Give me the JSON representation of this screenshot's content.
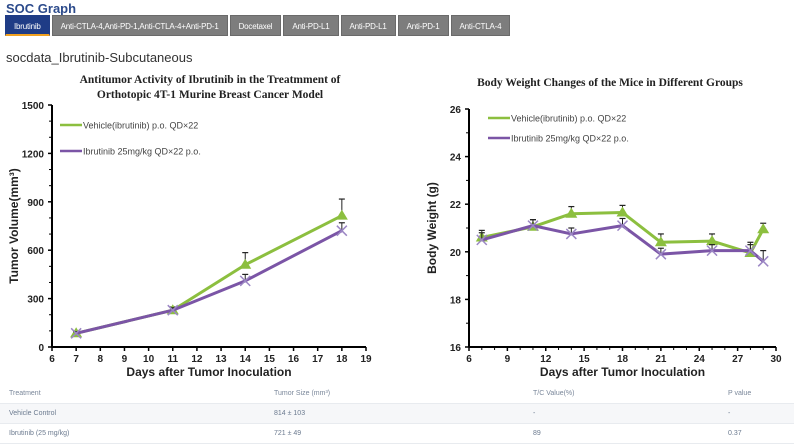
{
  "header": {
    "title": "SOC Graph",
    "tabs": [
      {
        "label": "Ibrutinib",
        "active": true
      },
      {
        "label": "Anti-CTLA-4,Anti-PD-1,Anti-CTLA-4+Anti-PD-1",
        "active": false
      },
      {
        "label": "Docetaxel",
        "active": false
      },
      {
        "label": "Anti-PD-L1",
        "active": false
      },
      {
        "label": "Anti-PD-L1",
        "active": false
      },
      {
        "label": "Anti-PD-1",
        "active": false
      },
      {
        "label": "Anti-CTLA-4",
        "active": false
      }
    ]
  },
  "section_title": "socdata_Ibrutinib-Subcutaneous",
  "colors": {
    "vehicle": "#8cbf3f",
    "ibrutinib": "#7b55a6",
    "tab_active": "#1f3c86",
    "tab_inactive": "#7d7d7d",
    "accent": "#f0a020"
  },
  "chart_data": [
    {
      "type": "line",
      "title": "Antitumor Activity of Ibrutinib in the Treatmment of Orthotopic 4T-1 Murine Breast Cancer Model",
      "title_lines": [
        "Antitumor Activity of Ibrutinib in the Treatmment of",
        "Orthotopic 4T-1 Murine Breast Cancer Model"
      ],
      "xlabel": "Days after Tumor Inoculation",
      "ylabel": "Tumor Volume(mm³)",
      "xlim": [
        6,
        19
      ],
      "ylim": [
        0,
        1500
      ],
      "xticks": [
        6,
        7,
        8,
        9,
        10,
        11,
        12,
        13,
        14,
        15,
        16,
        17,
        18,
        19
      ],
      "yticks": [
        0,
        300,
        600,
        900,
        1200,
        1500
      ],
      "legend": "top-left",
      "series": [
        {
          "name": "Vehicle(ibrutinib) p.o. QD×22",
          "color": "#8cbf3f",
          "marker": "triangle",
          "x": [
            7,
            11,
            14,
            18
          ],
          "y": [
            85,
            228,
            510,
            814
          ],
          "err": [
            10,
            20,
            75,
            103
          ]
        },
        {
          "name": "Ibrutinib 25mg/kg QD×22 p.o.",
          "color": "#7b55a6",
          "marker": "x",
          "x": [
            7,
            11,
            14,
            18
          ],
          "y": [
            85,
            228,
            410,
            721
          ],
          "err": [
            10,
            15,
            40,
            49
          ]
        }
      ]
    },
    {
      "type": "line",
      "title": "Body Weight Changes of the Mice in Different Groups",
      "title_lines": [
        "Body Weight Changes of the Mice in Different Groups"
      ],
      "xlabel": "Days after Tumor Inoculation",
      "ylabel": "Body Weight (g)",
      "xlim": [
        6,
        30
      ],
      "ylim": [
        16,
        26
      ],
      "xticks": [
        6,
        9,
        12,
        15,
        18,
        21,
        24,
        27,
        30
      ],
      "yticks": [
        16,
        18,
        20,
        22,
        24,
        26
      ],
      "legend": "top-left",
      "series": [
        {
          "name": "Vehicle(ibrutinib) p.o. QD×22",
          "color": "#8cbf3f",
          "marker": "triangle",
          "x": [
            7,
            11,
            14,
            18,
            21,
            25,
            28,
            29
          ],
          "y": [
            20.6,
            21.05,
            21.6,
            21.65,
            20.4,
            20.45,
            19.95,
            20.95
          ],
          "err": [
            0.3,
            0.3,
            0.3,
            0.3,
            0.35,
            0.3,
            0.35,
            0.25
          ]
        },
        {
          "name": "Ibrutinib 25mg/kg QD×22 p.o.",
          "color": "#7b55a6",
          "marker": "x",
          "x": [
            7,
            11,
            14,
            18,
            21,
            25,
            28,
            29
          ],
          "y": [
            20.5,
            21.1,
            20.75,
            21.1,
            19.9,
            20.05,
            20.05,
            19.6
          ],
          "err": [
            0.3,
            0.25,
            0.25,
            0.3,
            0.25,
            0.25,
            0.35,
            0.45
          ]
        }
      ]
    }
  ],
  "table": {
    "headers": [
      "Treatment",
      "Tumor Size (mm³)",
      "T/C Value(%)",
      "P value"
    ],
    "rows": [
      [
        "Vehicle Control",
        "814 ± 103",
        "-",
        "-"
      ],
      [
        "Ibrutinib (25 mg/kg)",
        "721 ± 49",
        "89",
        "0.37"
      ]
    ]
  }
}
